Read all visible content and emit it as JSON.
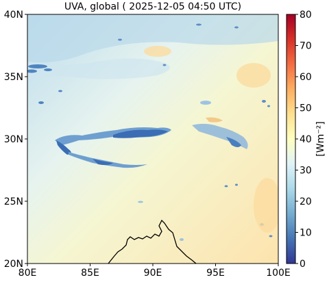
{
  "title": "UVA, global ( 2025-12-05 04:50 UTC)",
  "map": {
    "lon_ticks": [
      "80E",
      "85E",
      "90E",
      "95E",
      "100E"
    ],
    "lat_ticks": [
      "20N",
      "25N",
      "30N",
      "35N",
      "40N"
    ],
    "lon_range": [
      80,
      100
    ],
    "lat_range": [
      20,
      40
    ]
  },
  "colorbar": {
    "label": "[Wm⁻²]",
    "ticks": [
      "0",
      "10",
      "20",
      "30",
      "40",
      "50",
      "60",
      "70",
      "80"
    ],
    "range": [
      0,
      80
    ],
    "colormap": "RdYlBu_r",
    "colors": [
      "#313695",
      "#4575b4",
      "#74add1",
      "#abd9e9",
      "#e0f3f8",
      "#ffffbf",
      "#fee090",
      "#fdae61",
      "#f46d43",
      "#d73027",
      "#a50026"
    ]
  },
  "field_colors": {
    "north_background": "#c6e0ec",
    "south_background": "#fbe9b0",
    "cloud_dark": "#3b6fb0",
    "cloud_mid": "#78a9d3"
  }
}
